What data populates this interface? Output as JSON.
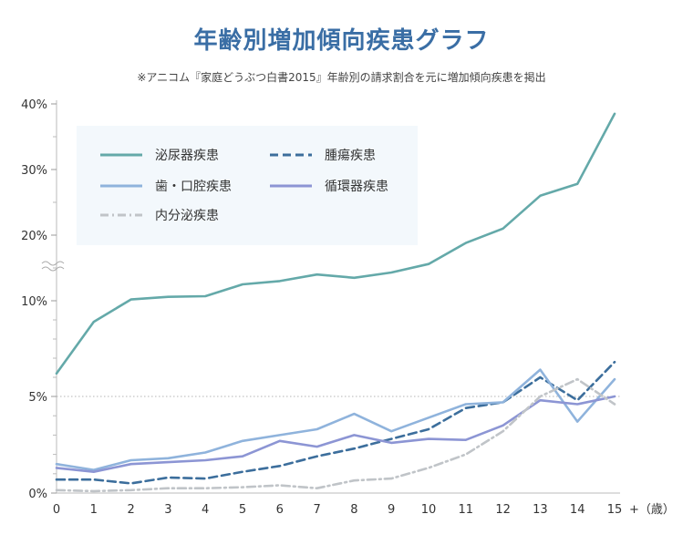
{
  "title": "年齢別増加傾向疾患グラフ",
  "subtitle": "※アニコム『家庭どうぶつ白書2015』年齢別の請求割合を元に増加傾向疾患を掲出",
  "chart_data": {
    "type": "line",
    "title": "年齢別増加傾向疾患グラフ",
    "x": [
      0,
      1,
      2,
      3,
      4,
      5,
      6,
      7,
      8,
      9,
      10,
      11,
      12,
      13,
      14,
      15
    ],
    "x_tick_labels": [
      "0",
      "1",
      "2",
      "3",
      "4",
      "5",
      "6",
      "7",
      "8",
      "9",
      "10",
      "11",
      "12",
      "13",
      "14",
      "15"
    ],
    "x_unit_label": "+（歳）",
    "y_tick_labels": [
      "0%",
      "5%",
      "10%",
      "20%",
      "30%",
      "40%"
    ],
    "y_scale": "broken axis (0–10% expanded, 10–40% compressed)",
    "grid": "dotted line at 5%",
    "legend_position": "top-left",
    "series": [
      {
        "name": "泌尿器疾患",
        "color": "#64a9a9",
        "style": "solid",
        "values": [
          6.2,
          8.9,
          10.2,
          10.6,
          10.7,
          12.5,
          13.0,
          14.0,
          13.5,
          14.3,
          15.6,
          18.8,
          21.0,
          26.0,
          27.8,
          38.5
        ]
      },
      {
        "name": "腫瘍疾患",
        "color": "#3c6e9c",
        "style": "dashed",
        "values": [
          0.7,
          0.7,
          0.5,
          0.8,
          0.75,
          1.1,
          1.4,
          1.9,
          2.3,
          2.8,
          3.3,
          4.4,
          4.7,
          6.0,
          4.8,
          6.8
        ]
      },
      {
        "name": "歯・口腔疾患",
        "color": "#8fb3dc",
        "style": "solid",
        "values": [
          1.5,
          1.2,
          1.7,
          1.8,
          2.1,
          2.7,
          3.0,
          3.3,
          4.1,
          3.2,
          3.9,
          4.6,
          4.7,
          6.4,
          3.7,
          5.9
        ]
      },
      {
        "name": "循環器疾患",
        "color": "#8c95d4",
        "style": "solid",
        "values": [
          1.3,
          1.1,
          1.5,
          1.6,
          1.7,
          1.9,
          2.7,
          2.4,
          3.0,
          2.6,
          2.8,
          2.75,
          3.5,
          4.8,
          4.6,
          5.0
        ]
      },
      {
        "name": "内分泌疾患",
        "color": "#c0c4c8",
        "style": "dashdot",
        "values": [
          0.15,
          0.1,
          0.15,
          0.25,
          0.25,
          0.3,
          0.4,
          0.25,
          0.65,
          0.75,
          1.3,
          2.0,
          3.2,
          5.0,
          5.9,
          4.6
        ]
      }
    ]
  }
}
